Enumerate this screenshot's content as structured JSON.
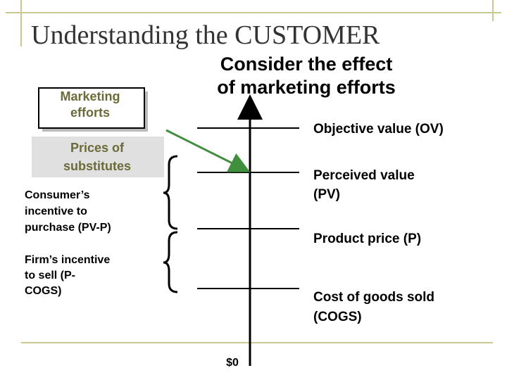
{
  "title": "Understanding the CUSTOMER",
  "subtitle": [
    "Consider the effect",
    "of marketing efforts"
  ],
  "boxes": [
    {
      "lines": [
        "Marketing",
        "efforts"
      ]
    },
    {
      "lines": [
        "Prices of",
        "substitutes"
      ]
    }
  ],
  "incentives": [
    {
      "lines": [
        "Consumer’s",
        "incentive to",
        "purchase (PV-P)"
      ]
    },
    {
      "lines": [
        "Firm’s incentive",
        "to sell (P-",
        "COGS)"
      ]
    }
  ],
  "levels": [
    {
      "lines": [
        "Objective value (OV)"
      ]
    },
    {
      "lines": [
        "Perceived value",
        "(PV)"
      ]
    },
    {
      "lines": [
        "Product price (P)"
      ]
    },
    {
      "lines": [
        "Cost of goods sold",
        "(COGS)"
      ]
    }
  ],
  "zero_label": "$0"
}
